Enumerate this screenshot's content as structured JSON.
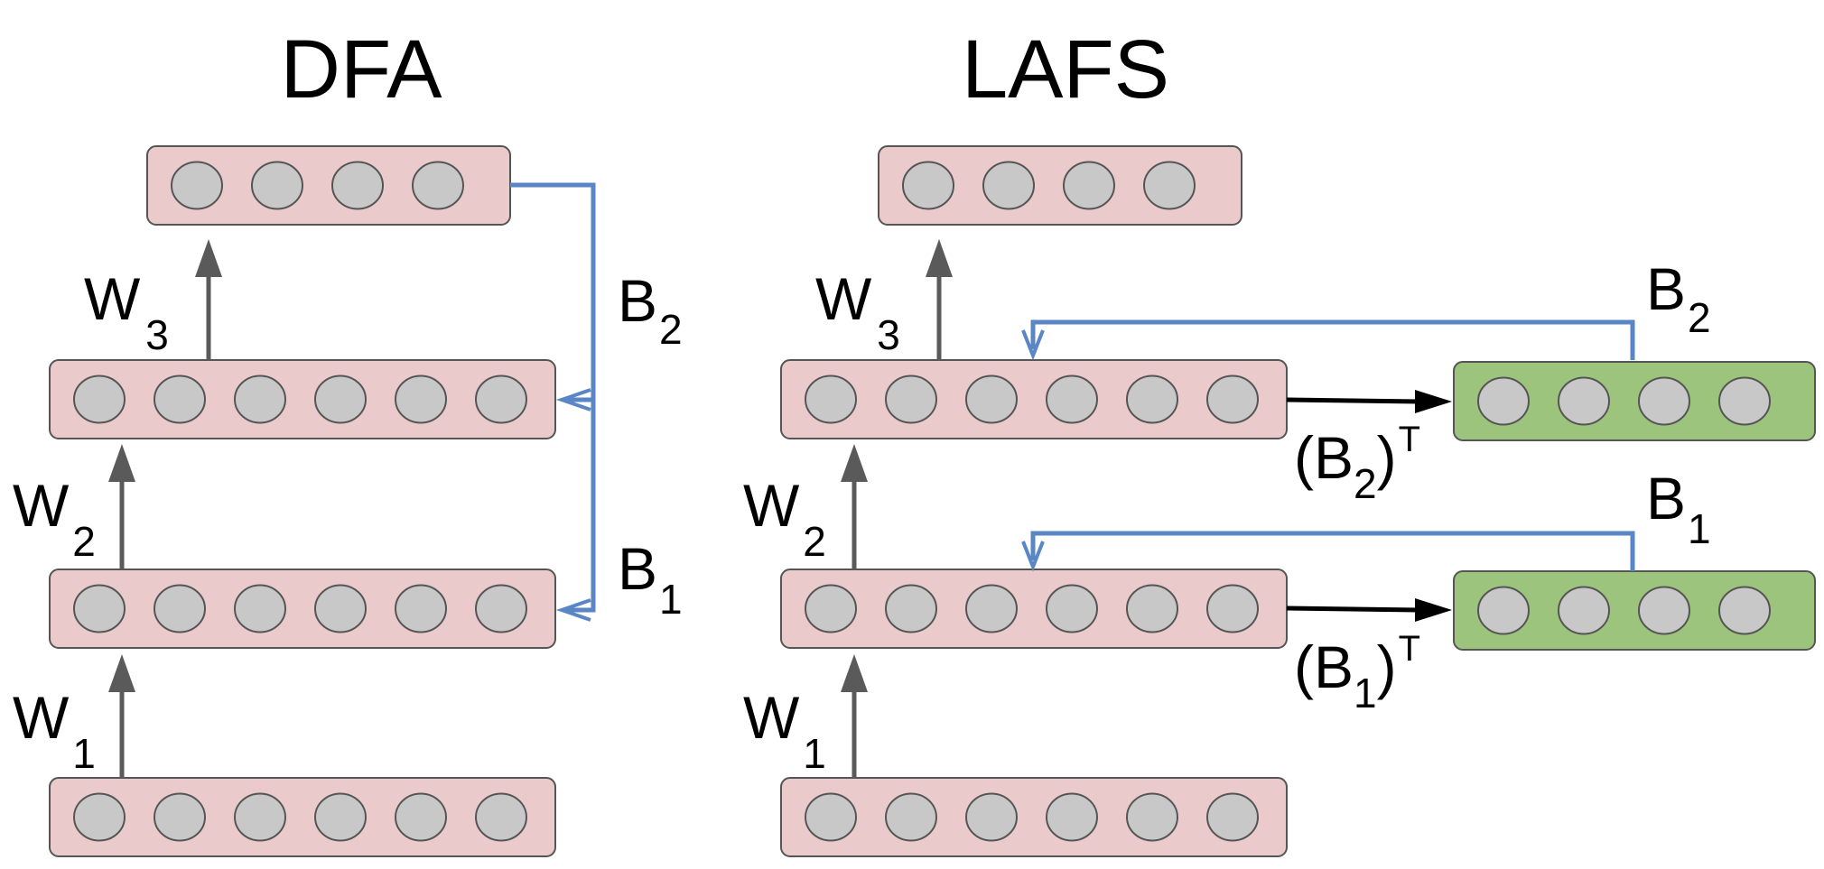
{
  "titles": {
    "left": "DFA",
    "right": "LAFS"
  },
  "weights": {
    "w1": "W",
    "w1_sub": "1",
    "w2": "W",
    "w2_sub": "2",
    "w3": "W",
    "w3_sub": "3"
  },
  "feedback": {
    "b1": "B",
    "b1_sub": "1",
    "b2": "B",
    "b2_sub": "2",
    "paren_open": "(",
    "paren_close": ")",
    "transpose": "T"
  },
  "colors": {
    "layer_fill": "#EACACB",
    "feedback_fill": "#9DC47C",
    "neuron_fill": "#C8C8C8",
    "forward_arrow": "#5A5A5A",
    "feedback_arrow": "#5B86C6",
    "transpose_arrow": "#000000"
  }
}
